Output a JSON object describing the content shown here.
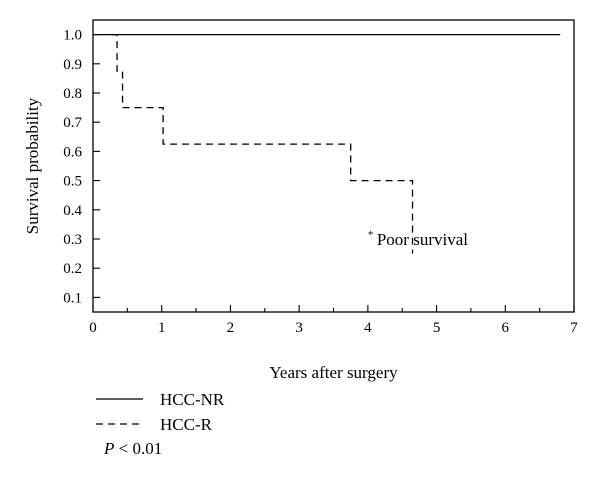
{
  "chart_data": {
    "type": "line",
    "subtype": "step",
    "xlabel": "Years after surgery",
    "ylabel": "Survival probability",
    "xlim": [
      0,
      7
    ],
    "ylim": [
      0.05,
      1.05
    ],
    "xticks": [
      0,
      1,
      2,
      3,
      4,
      5,
      6,
      7
    ],
    "yticks": [
      0.1,
      0.2,
      0.3,
      0.4,
      0.5,
      0.6,
      0.7,
      0.8,
      0.9,
      1.0
    ],
    "ytick_labels": [
      "0.1",
      "0.2",
      "0.3",
      "0.4",
      "0.5",
      "0.6",
      "0.7",
      "0.8",
      "0.9",
      "1.0"
    ],
    "grid": false,
    "legend_position": "bottom-left",
    "series": [
      {
        "name": "HCC-NR",
        "style": "solid",
        "x": [
          0,
          6.8
        ],
        "y": [
          1.0,
          1.0
        ]
      },
      {
        "name": "HCC-R",
        "style": "dashed",
        "x": [
          0.27,
          0.35,
          0.43,
          1.02,
          3.75,
          4.65
        ],
        "y": [
          1.0,
          0.875,
          0.75,
          0.625,
          0.5,
          0.25
        ]
      }
    ],
    "annotation": {
      "star": "*",
      "text": "Poor survival",
      "x": 4.0,
      "y": 0.28
    },
    "p_value": {
      "symbol": "P",
      "text": " < 0.01"
    },
    "colors": {
      "lines": "#000000"
    }
  }
}
